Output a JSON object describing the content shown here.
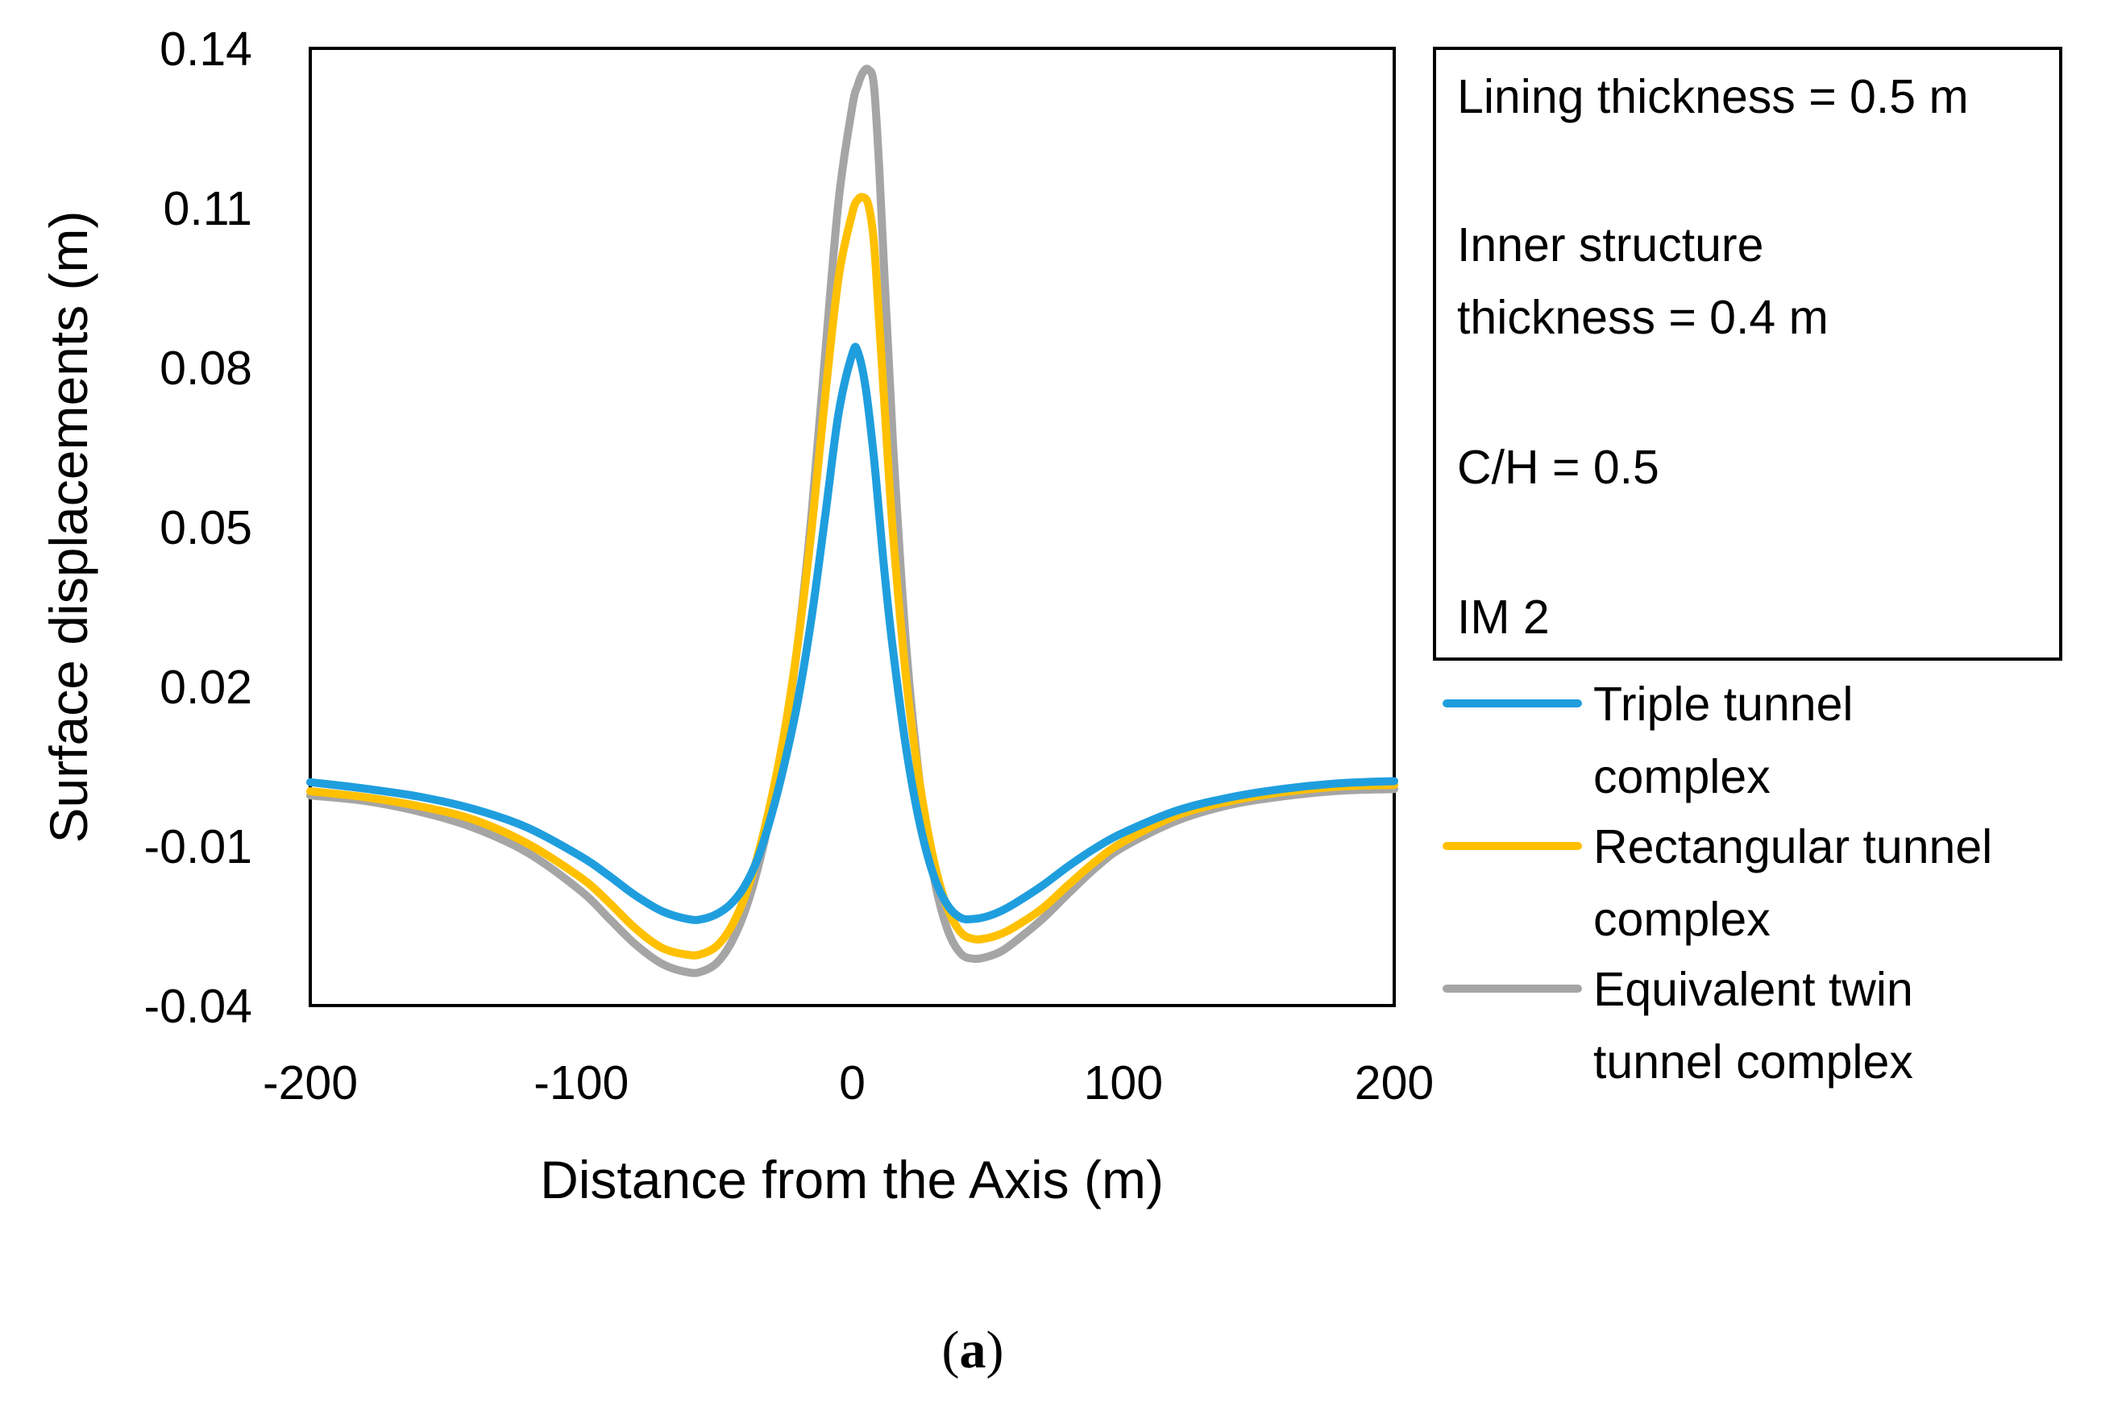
{
  "chart_data": {
    "type": "line",
    "xlabel": "Distance from the Axis (m)",
    "ylabel": "Surface displacements (m)",
    "xlim": [
      -200,
      200
    ],
    "ylim": [
      -0.04,
      0.14
    ],
    "x_ticks": [
      "-200",
      "-100",
      "0",
      "100",
      "200"
    ],
    "y_ticks": [
      "-0.04",
      "-0.01",
      "0.02",
      "0.05",
      "0.08",
      "0.11",
      "0.14"
    ],
    "grid": false,
    "legend_placement": "right",
    "annotations": [
      "Lining thickness = 0.5 m",
      "Inner structure",
      "thickness = 0.4 m",
      "C/H = 0.5",
      "IM 2"
    ],
    "series": [
      {
        "name": "Triple tunnel complex",
        "legend_lines": [
          "Triple tunnel",
          "complex"
        ],
        "color": "#1f9ede",
        "x": [
          -200,
          -180,
          -160,
          -140,
          -120,
          -100,
          -90,
          -80,
          -70,
          -60,
          -55,
          -50,
          -45,
          -40,
          -35,
          -30,
          -25,
          -20,
          -15,
          -10,
          -5,
          0,
          2,
          5,
          8,
          10,
          12,
          15,
          20,
          25,
          30,
          35,
          40,
          45,
          50,
          55,
          60,
          70,
          80,
          90,
          100,
          120,
          140,
          160,
          180,
          200
        ],
        "y": [
          0.002,
          0.0008,
          -0.0007,
          -0.003,
          -0.0065,
          -0.012,
          -0.0155,
          -0.0193,
          -0.0223,
          -0.0238,
          -0.0237,
          -0.0228,
          -0.021,
          -0.0178,
          -0.0125,
          -0.0045,
          0.0055,
          0.0175,
          0.033,
          0.052,
          0.0715,
          0.0825,
          0.083,
          0.076,
          0.063,
          0.052,
          0.041,
          0.027,
          0.008,
          -0.006,
          -0.0155,
          -0.021,
          -0.0235,
          -0.0237,
          -0.0232,
          -0.0222,
          -0.0208,
          -0.0175,
          -0.0137,
          -0.0103,
          -0.0075,
          -0.0033,
          -0.0008,
          0.0008,
          0.0018,
          0.0022
        ]
      },
      {
        "name": "Rectangular tunnel complex",
        "legend_lines": [
          "Rectangular tunnel",
          "complex"
        ],
        "color": "#ffc000",
        "x": [
          -200,
          -180,
          -160,
          -140,
          -120,
          -100,
          -90,
          -80,
          -70,
          -60,
          -55,
          -50,
          -45,
          -40,
          -35,
          -30,
          -25,
          -20,
          -15,
          -10,
          -5,
          0,
          2,
          4,
          6,
          8,
          10,
          12,
          15,
          20,
          25,
          30,
          35,
          40,
          45,
          50,
          55,
          60,
          70,
          80,
          90,
          100,
          120,
          140,
          160,
          180,
          200
        ],
        "y": [
          0.0003,
          -0.0008,
          -0.0025,
          -0.005,
          -0.0095,
          -0.016,
          -0.0205,
          -0.0255,
          -0.0292,
          -0.0305,
          -0.0302,
          -0.0288,
          -0.0255,
          -0.02,
          -0.012,
          -0.0015,
          0.0115,
          0.0285,
          0.0495,
          0.0745,
          0.097,
          0.109,
          0.1115,
          0.112,
          0.1105,
          0.1035,
          0.088,
          0.072,
          0.049,
          0.021,
          0.0015,
          -0.0125,
          -0.0215,
          -0.0262,
          -0.0275,
          -0.0273,
          -0.0265,
          -0.0252,
          -0.0218,
          -0.0172,
          -0.0128,
          -0.0092,
          -0.0042,
          -0.0015,
          0.0002,
          0.0012,
          0.0015
        ]
      },
      {
        "name": "Equivalent twin tunnel complex",
        "legend_lines": [
          "Equivalent twin",
          "tunnel complex"
        ],
        "color": "#a5a5a5",
        "x": [
          -200,
          -180,
          -160,
          -140,
          -120,
          -100,
          -90,
          -80,
          -70,
          -60,
          -55,
          -50,
          -45,
          -40,
          -35,
          -30,
          -25,
          -20,
          -15,
          -10,
          -5,
          0,
          2,
          4,
          6,
          8,
          10,
          12,
          15,
          20,
          25,
          30,
          35,
          40,
          45,
          50,
          55,
          60,
          70,
          80,
          90,
          100,
          120,
          140,
          160,
          180,
          200
        ],
        "y": [
          -0.0005,
          -0.0015,
          -0.0035,
          -0.0065,
          -0.0112,
          -0.0185,
          -0.0235,
          -0.0285,
          -0.0322,
          -0.0338,
          -0.0335,
          -0.032,
          -0.0285,
          -0.0228,
          -0.0145,
          -0.0035,
          0.0105,
          0.0285,
          0.0525,
          0.0825,
          0.1115,
          0.129,
          0.133,
          0.1355,
          0.136,
          0.133,
          0.117,
          0.096,
          0.066,
          0.027,
          0.0015,
          -0.0155,
          -0.0255,
          -0.0302,
          -0.0312,
          -0.0308,
          -0.0298,
          -0.028,
          -0.0238,
          -0.0188,
          -0.014,
          -0.0102,
          -0.0052,
          -0.0022,
          -0.0006,
          0.0004,
          0.0007
        ]
      }
    ]
  },
  "caption": {
    "open": "(",
    "letter": "a",
    "close": ")"
  }
}
